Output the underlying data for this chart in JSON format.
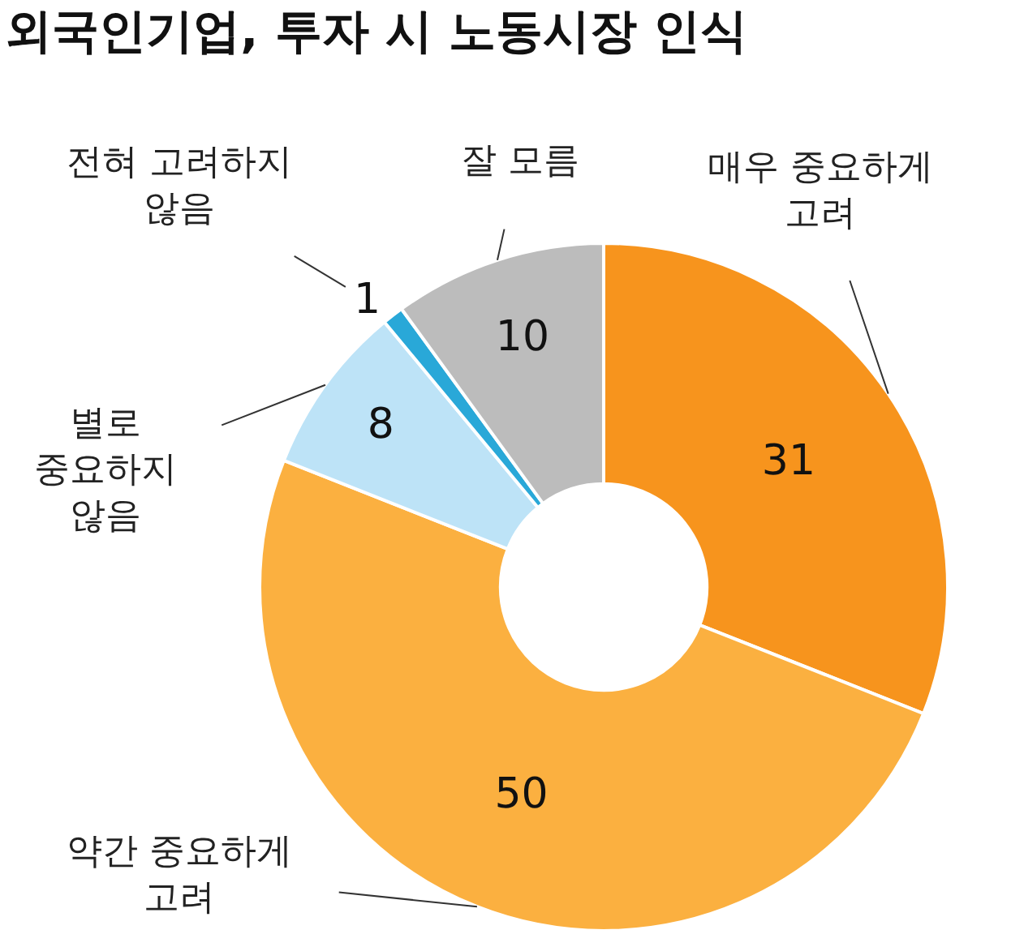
{
  "chart_data": {
    "type": "donut",
    "title": "외국인기업, 투자 시 노동시장 인식",
    "categories": [
      "매우 중요하게\n고려",
      "약간 중요하게\n고려",
      "별로\n중요하지\n않음",
      "전혀 고려하지\n않음",
      "잘 모름"
    ],
    "values": [
      31,
      50,
      8,
      1,
      10
    ],
    "colors": [
      "#f7941d",
      "#fbb040",
      "#bde3f7",
      "#29a8d8",
      "#bcbcbc"
    ],
    "data_labels": true
  }
}
